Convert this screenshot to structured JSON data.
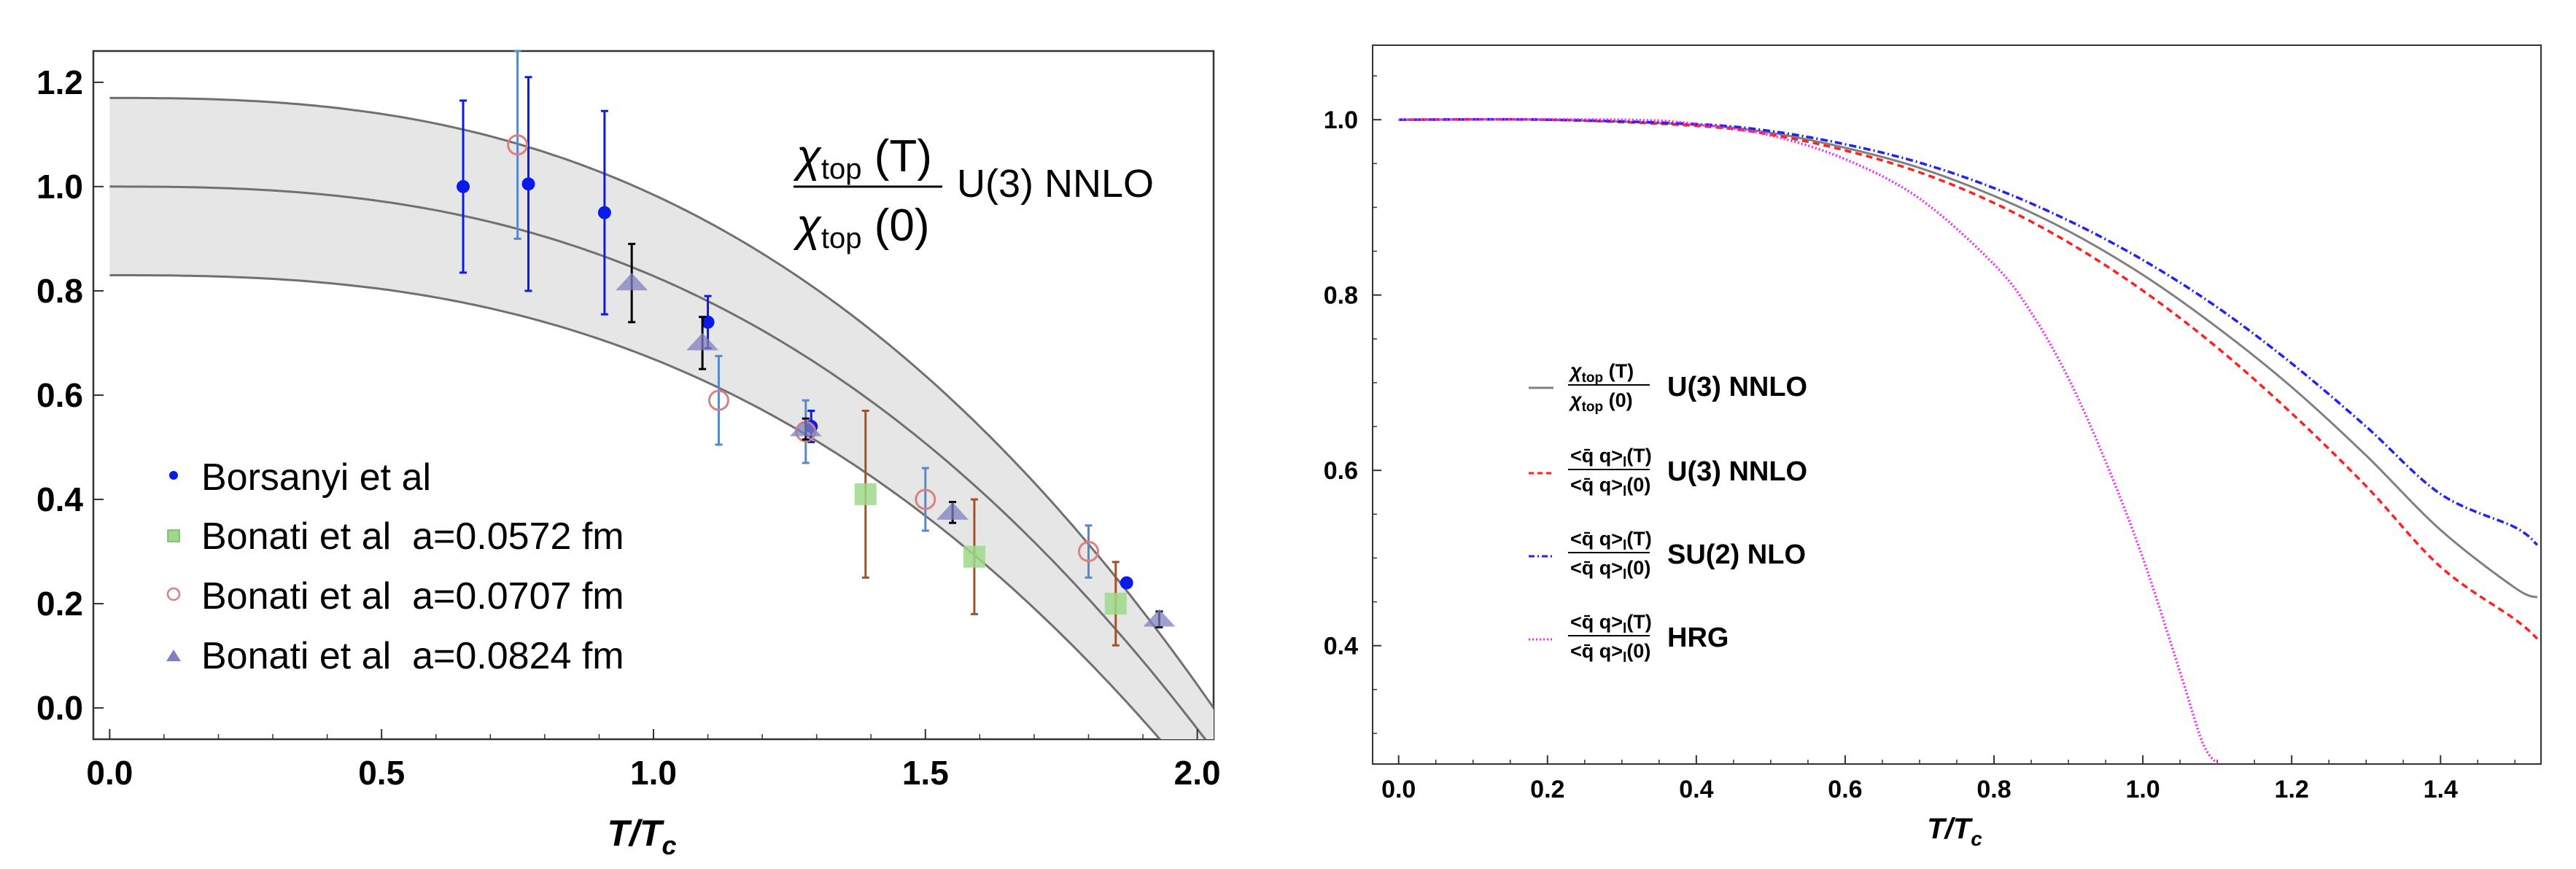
{
  "chart_data": [
    {
      "type": "scatter",
      "title": "",
      "xlabel": "T/T_c",
      "xlabel_parts": {
        "main": "T/T",
        "sub": "c"
      },
      "ylabel": "",
      "xlim": [
        -0.03,
        2.03
      ],
      "ylim": [
        -0.06,
        1.26
      ],
      "xticks": [
        "0.0",
        "0.5",
        "1.0",
        "1.5",
        "2.0"
      ],
      "xtick_values": [
        0,
        0.5,
        1.0,
        1.5,
        2.0
      ],
      "yticks": [
        "0.0",
        "0.2",
        "0.4",
        "0.6",
        "0.8",
        "1.0",
        "1.2"
      ],
      "ytick_values": [
        0,
        0.2,
        0.4,
        0.6,
        0.8,
        1.0,
        1.2
      ],
      "annotation": {
        "num": "χ",
        "num_sub": "top",
        "num_arg": " (T)",
        "den": "χ",
        "den_sub": "top",
        "den_arg": " (0)",
        "label": "U(3) NNLO"
      },
      "band": {
        "name": "U(3) NNLO",
        "center_at_0": 1.0,
        "upper_at_0": 1.17,
        "lower_at_0": 0.83,
        "zero_crossing_center": 1.97,
        "zero_crossing_upper": 2.03,
        "zero_crossing_lower": 1.88
      },
      "series": [
        {
          "name": "Borsanyi et al",
          "marker": "circle",
          "color": "#0a1aeb",
          "x": [
            0.65,
            0.77,
            0.91,
            1.1,
            1.29,
            1.87
          ],
          "y": [
            1.0,
            1.005,
            0.95,
            0.74,
            0.54,
            0.24
          ],
          "err": [
            0.165,
            0.205,
            0.195,
            0.05,
            0.03,
            0.0
          ]
        },
        {
          "name": "Bonati et al  a=0.0572 fm",
          "marker": "square",
          "color": "#9ed98a",
          "x": [
            1.39,
            1.59,
            1.85
          ],
          "y": [
            0.41,
            0.29,
            0.2
          ],
          "err": [
            0.16,
            0.11,
            0.08
          ],
          "errcolor": "#a0522d"
        },
        {
          "name": "Bonati et al  a=0.0707 fm",
          "marker": "open-circle",
          "color": "#d98080",
          "x": [
            0.75,
            1.12,
            1.28,
            1.5,
            1.8
          ],
          "y": [
            1.08,
            0.59,
            0.53,
            0.4,
            0.3
          ],
          "err": [
            0.18,
            0.085,
            0.06,
            0.06,
            0.05
          ],
          "errcolor": "#5588cc"
        },
        {
          "name": "Bonati et al  a=0.0824 fm",
          "marker": "triangle",
          "color": "#8080c0",
          "x": [
            0.96,
            1.09,
            1.28,
            1.55,
            1.93
          ],
          "y": [
            0.815,
            0.7,
            0.535,
            0.375,
            0.17
          ],
          "err": [
            0.075,
            0.05,
            0.02,
            0.02,
            0.015
          ],
          "errcolor": "#000000"
        }
      ]
    },
    {
      "type": "line",
      "title": "",
      "xlabel": "T/T_c",
      "xlabel_parts": {
        "main": "T/T",
        "sub": "c"
      },
      "ylabel": "",
      "xlim": [
        -0.035,
        1.535
      ],
      "ylim": [
        0.265,
        1.085
      ],
      "xticks": [
        "0.0",
        "0.2",
        "0.4",
        "0.6",
        "0.8",
        "1.0",
        "1.2",
        "1.4"
      ],
      "xtick_values": [
        0,
        0.2,
        0.4,
        0.6,
        0.8,
        1.0,
        1.2,
        1.4
      ],
      "yticks": [
        "0.4",
        "0.6",
        "0.8",
        "1.0"
      ],
      "ytick_values": [
        0.4,
        0.6,
        0.8,
        1.0
      ],
      "series": [
        {
          "name": "U(3) NNLO",
          "legend": {
            "num": "χ",
            "num_sub": "top",
            "num_arg": " (T)",
            "den": "χ",
            "den_sub": "top",
            "den_arg": " (0)"
          },
          "style": "solid",
          "color": "#808080",
          "x": [
            0.0,
            0.2,
            0.4,
            0.5,
            0.6,
            0.7,
            0.8,
            0.9,
            1.0,
            1.1,
            1.2,
            1.3,
            1.4,
            1.5,
            1.53
          ],
          "y": [
            1.0,
            1.0,
            0.994,
            0.985,
            0.968,
            0.945,
            0.913,
            0.873,
            0.823,
            0.763,
            0.695,
            0.617,
            0.532,
            0.466,
            0.455
          ]
        },
        {
          "name": "U(3) NNLO",
          "legend": {
            "num": "<q̄ q>",
            "num_sub": "l",
            "num_arg": "(T)",
            "den": "<q̄ q>",
            "den_sub": "l",
            "den_arg": "(0)"
          },
          "style": "dashed",
          "color": "#ff2020",
          "x": [
            0.0,
            0.2,
            0.4,
            0.5,
            0.6,
            0.7,
            0.8,
            0.9,
            1.0,
            1.1,
            1.2,
            1.3,
            1.4,
            1.5,
            1.53
          ],
          "y": [
            1.0,
            1.0,
            0.993,
            0.983,
            0.965,
            0.94,
            0.905,
            0.86,
            0.805,
            0.74,
            0.665,
            0.582,
            0.49,
            0.43,
            0.408
          ]
        },
        {
          "name": "SU(2) NLO",
          "legend": {
            "num": "<q̄ q>",
            "num_sub": "l",
            "num_arg": "(T)",
            "den": "<q̄ q>",
            "den_sub": "l",
            "den_arg": "(0)"
          },
          "style": "dashdot",
          "color": "#2020ff",
          "x": [
            0.0,
            0.2,
            0.4,
            0.5,
            0.6,
            0.7,
            0.8,
            0.9,
            1.0,
            1.1,
            1.2,
            1.3,
            1.4,
            1.5,
            1.53
          ],
          "y": [
            1.0,
            1.0,
            0.995,
            0.987,
            0.972,
            0.951,
            0.922,
            0.885,
            0.84,
            0.786,
            0.722,
            0.65,
            0.573,
            0.535,
            0.515
          ]
        },
        {
          "name": "HRG",
          "legend": {
            "num": "<q̄ q>",
            "num_sub": "l",
            "num_arg": "(T)",
            "den": "<q̄ q>",
            "den_sub": "l",
            "den_arg": "(0)"
          },
          "style": "dotted",
          "color": "#ff20ff",
          "x": [
            0.0,
            0.3,
            0.4,
            0.5,
            0.6,
            0.7,
            0.8,
            0.85,
            0.9,
            0.95,
            1.0,
            1.05,
            1.08,
            1.1
          ],
          "y": [
            1.0,
            1.0,
            0.995,
            0.982,
            0.955,
            0.91,
            0.835,
            0.78,
            0.705,
            0.61,
            0.5,
            0.37,
            0.29,
            0.265
          ]
        }
      ]
    }
  ]
}
